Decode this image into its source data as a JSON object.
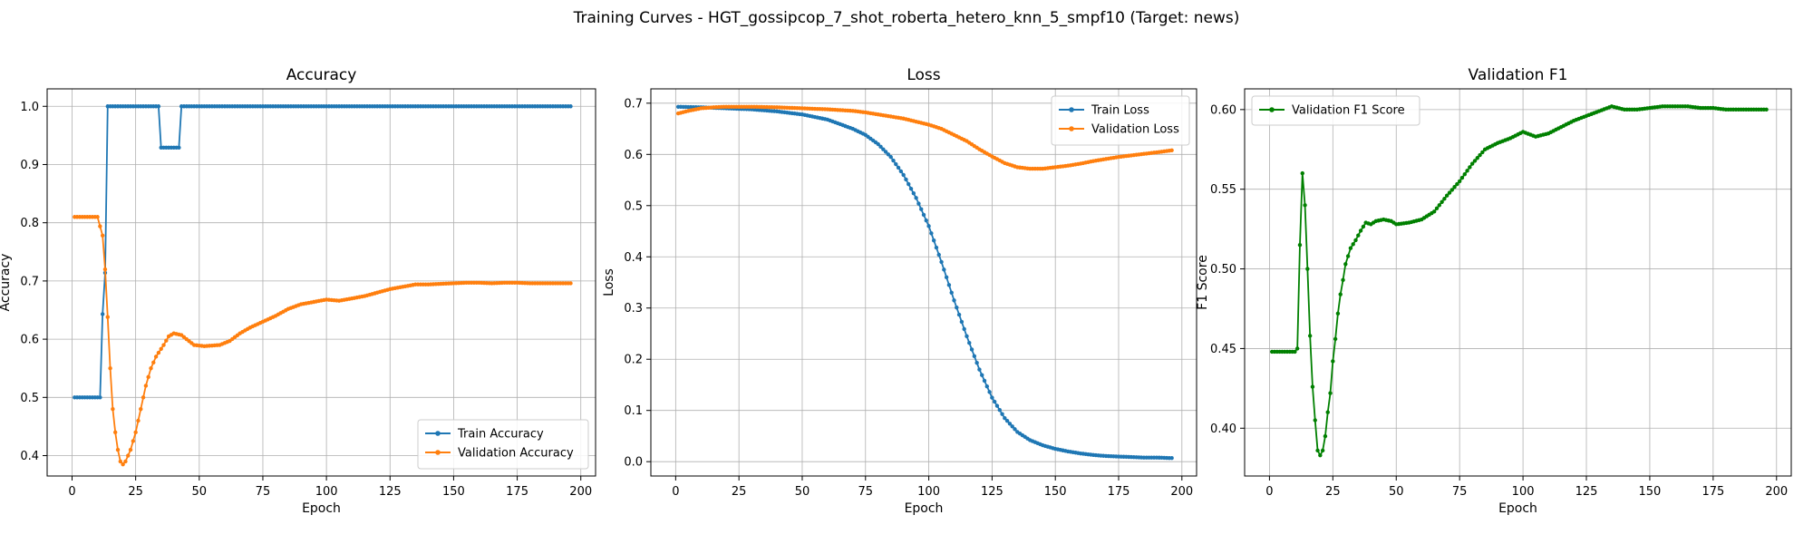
{
  "figure_title": "Training Curves - HGT_gossipcop_7_shot_roberta_hetero_knn_5_smpf10 (Target: news)",
  "colors": {
    "train": "#1f77b4",
    "validation": "#ff7f0e",
    "f1": "#008000",
    "grid": "#b0b0b0"
  },
  "chart_data": [
    {
      "type": "line",
      "title": "Accuracy",
      "xlabel": "Epoch",
      "ylabel": "Accuracy",
      "xlim": [
        -9.8,
        205.8
      ],
      "ylim": [
        0.365,
        1.03
      ],
      "xticks": [
        0,
        25,
        50,
        75,
        100,
        125,
        150,
        175,
        200
      ],
      "yticks": [
        0.4,
        0.5,
        0.6,
        0.7,
        0.8,
        0.9,
        1.0
      ],
      "ytick_labels": [
        "0.4",
        "0.5",
        "0.6",
        "0.7",
        "0.8",
        "0.9",
        "1.0"
      ],
      "grid": true,
      "legend_position": "lower-right",
      "series": [
        {
          "name": "Train Accuracy",
          "color": "#1f77b4",
          "points": [
            [
              1,
              0.5
            ],
            [
              10,
              0.5
            ],
            [
              11,
              0.5
            ],
            [
              12,
              0.643
            ],
            [
              13,
              0.714
            ],
            [
              14,
              1.0
            ],
            [
              34,
              1.0
            ],
            [
              35,
              0.929
            ],
            [
              42,
              0.929
            ],
            [
              43,
              1.0
            ],
            [
              196,
              1.0
            ]
          ]
        },
        {
          "name": "Validation Accuracy",
          "color": "#ff7f0e",
          "points": [
            [
              1,
              0.81
            ],
            [
              10,
              0.81
            ],
            [
              12,
              0.778
            ],
            [
              13,
              0.72
            ],
            [
              14,
              0.638
            ],
            [
              15,
              0.55
            ],
            [
              16,
              0.48
            ],
            [
              17,
              0.44
            ],
            [
              18,
              0.41
            ],
            [
              19,
              0.39
            ],
            [
              20,
              0.385
            ],
            [
              21,
              0.39
            ],
            [
              23,
              0.41
            ],
            [
              25,
              0.44
            ],
            [
              27,
              0.48
            ],
            [
              29,
              0.52
            ],
            [
              31,
              0.55
            ],
            [
              33,
              0.57
            ],
            [
              36,
              0.59
            ],
            [
              38,
              0.605
            ],
            [
              40,
              0.61
            ],
            [
              43,
              0.607
            ],
            [
              45,
              0.6
            ],
            [
              48,
              0.59
            ],
            [
              52,
              0.588
            ],
            [
              58,
              0.59
            ],
            [
              62,
              0.597
            ],
            [
              66,
              0.61
            ],
            [
              70,
              0.62
            ],
            [
              75,
              0.63
            ],
            [
              80,
              0.64
            ],
            [
              85,
              0.652
            ],
            [
              90,
              0.66
            ],
            [
              95,
              0.664
            ],
            [
              100,
              0.668
            ],
            [
              105,
              0.666
            ],
            [
              110,
              0.67
            ],
            [
              115,
              0.674
            ],
            [
              120,
              0.68
            ],
            [
              125,
              0.686
            ],
            [
              130,
              0.69
            ],
            [
              135,
              0.694
            ],
            [
              140,
              0.694
            ],
            [
              145,
              0.695
            ],
            [
              150,
              0.696
            ],
            [
              155,
              0.697
            ],
            [
              160,
              0.697
            ],
            [
              165,
              0.696
            ],
            [
              170,
              0.697
            ],
            [
              175,
              0.697
            ],
            [
              180,
              0.696
            ],
            [
              185,
              0.696
            ],
            [
              190,
              0.696
            ],
            [
              196,
              0.696
            ]
          ]
        }
      ]
    },
    {
      "type": "line",
      "title": "Loss",
      "xlabel": "Epoch",
      "ylabel": "Loss",
      "xlim": [
        -9.8,
        205.8
      ],
      "ylim": [
        -0.028,
        0.728
      ],
      "xticks": [
        0,
        25,
        50,
        75,
        100,
        125,
        150,
        175,
        200
      ],
      "yticks": [
        0.0,
        0.1,
        0.2,
        0.3,
        0.4,
        0.5,
        0.6,
        0.7
      ],
      "ytick_labels": [
        "0.0",
        "0.1",
        "0.2",
        "0.3",
        "0.4",
        "0.5",
        "0.6",
        "0.7"
      ],
      "grid": true,
      "legend_position": "top-right",
      "series": [
        {
          "name": "Train Loss",
          "color": "#1f77b4",
          "points": [
            [
              1,
              0.693
            ],
            [
              10,
              0.692
            ],
            [
              20,
              0.69
            ],
            [
              30,
              0.688
            ],
            [
              40,
              0.684
            ],
            [
              50,
              0.678
            ],
            [
              60,
              0.668
            ],
            [
              70,
              0.65
            ],
            [
              75,
              0.638
            ],
            [
              80,
              0.62
            ],
            [
              85,
              0.595
            ],
            [
              90,
              0.56
            ],
            [
              95,
              0.515
            ],
            [
              100,
              0.46
            ],
            [
              105,
              0.39
            ],
            [
              110,
              0.315
            ],
            [
              115,
              0.245
            ],
            [
              120,
              0.18
            ],
            [
              125,
              0.125
            ],
            [
              130,
              0.085
            ],
            [
              135,
              0.058
            ],
            [
              140,
              0.042
            ],
            [
              145,
              0.032
            ],
            [
              150,
              0.025
            ],
            [
              155,
              0.02
            ],
            [
              160,
              0.016
            ],
            [
              165,
              0.013
            ],
            [
              170,
              0.011
            ],
            [
              175,
              0.01
            ],
            [
              180,
              0.009
            ],
            [
              185,
              0.008
            ],
            [
              190,
              0.008
            ],
            [
              196,
              0.007
            ]
          ]
        },
        {
          "name": "Validation Loss",
          "color": "#ff7f0e",
          "points": [
            [
              1,
              0.68
            ],
            [
              5,
              0.685
            ],
            [
              10,
              0.69
            ],
            [
              15,
              0.692
            ],
            [
              20,
              0.693
            ],
            [
              30,
              0.693
            ],
            [
              40,
              0.692
            ],
            [
              50,
              0.69
            ],
            [
              60,
              0.688
            ],
            [
              70,
              0.685
            ],
            [
              75,
              0.682
            ],
            [
              80,
              0.678
            ],
            [
              90,
              0.67
            ],
            [
              100,
              0.658
            ],
            [
              105,
              0.65
            ],
            [
              110,
              0.638
            ],
            [
              115,
              0.626
            ],
            [
              120,
              0.61
            ],
            [
              125,
              0.596
            ],
            [
              130,
              0.583
            ],
            [
              135,
              0.575
            ],
            [
              140,
              0.572
            ],
            [
              145,
              0.572
            ],
            [
              150,
              0.575
            ],
            [
              155,
              0.578
            ],
            [
              160,
              0.582
            ],
            [
              165,
              0.587
            ],
            [
              170,
              0.591
            ],
            [
              175,
              0.595
            ],
            [
              180,
              0.598
            ],
            [
              185,
              0.601
            ],
            [
              190,
              0.604
            ],
            [
              196,
              0.608
            ]
          ]
        }
      ]
    },
    {
      "type": "line",
      "title": "Validation F1",
      "xlabel": "Epoch",
      "ylabel": "F1 Score",
      "xlim": [
        -9.8,
        205.8
      ],
      "ylim": [
        0.37,
        0.613
      ],
      "xticks": [
        0,
        25,
        50,
        75,
        100,
        125,
        150,
        175,
        200
      ],
      "yticks": [
        0.4,
        0.45,
        0.5,
        0.55,
        0.6
      ],
      "ytick_labels": [
        "0.40",
        "0.45",
        "0.50",
        "0.55",
        "0.60"
      ],
      "grid": true,
      "legend_position": "top-left",
      "series": [
        {
          "name": "Validation F1 Score",
          "color": "#008000",
          "points": [
            [
              1,
              0.448
            ],
            [
              10,
              0.448
            ],
            [
              11,
              0.45
            ],
            [
              12,
              0.515
            ],
            [
              13,
              0.56
            ],
            [
              14,
              0.54
            ],
            [
              15,
              0.5
            ],
            [
              16,
              0.458
            ],
            [
              17,
              0.426
            ],
            [
              18,
              0.405
            ],
            [
              19,
              0.386
            ],
            [
              20,
              0.383
            ],
            [
              21,
              0.386
            ],
            [
              22,
              0.395
            ],
            [
              23,
              0.41
            ],
            [
              24,
              0.422
            ],
            [
              25,
              0.442
            ],
            [
              26,
              0.456
            ],
            [
              27,
              0.472
            ],
            [
              28,
              0.484
            ],
            [
              29,
              0.493
            ],
            [
              30,
              0.503
            ],
            [
              32,
              0.513
            ],
            [
              34,
              0.518
            ],
            [
              36,
              0.524
            ],
            [
              38,
              0.529
            ],
            [
              40,
              0.528
            ],
            [
              42,
              0.53
            ],
            [
              45,
              0.531
            ],
            [
              48,
              0.53
            ],
            [
              50,
              0.528
            ],
            [
              55,
              0.529
            ],
            [
              60,
              0.531
            ],
            [
              65,
              0.536
            ],
            [
              70,
              0.546
            ],
            [
              75,
              0.555
            ],
            [
              80,
              0.566
            ],
            [
              85,
              0.575
            ],
            [
              90,
              0.579
            ],
            [
              95,
              0.582
            ],
            [
              100,
              0.586
            ],
            [
              105,
              0.583
            ],
            [
              110,
              0.585
            ],
            [
              115,
              0.589
            ],
            [
              120,
              0.593
            ],
            [
              125,
              0.596
            ],
            [
              130,
              0.599
            ],
            [
              135,
              0.602
            ],
            [
              140,
              0.6
            ],
            [
              145,
              0.6
            ],
            [
              150,
              0.601
            ],
            [
              155,
              0.602
            ],
            [
              160,
              0.602
            ],
            [
              165,
              0.602
            ],
            [
              170,
              0.601
            ],
            [
              175,
              0.601
            ],
            [
              180,
              0.6
            ],
            [
              185,
              0.6
            ],
            [
              190,
              0.6
            ],
            [
              196,
              0.6
            ]
          ]
        }
      ]
    }
  ]
}
